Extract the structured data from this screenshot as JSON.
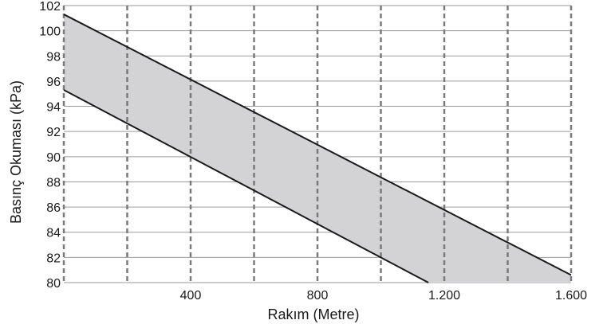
{
  "chart_data": {
    "type": "area",
    "title": "",
    "xlabel": "Rakım (Metre)",
    "ylabel": "Basınç Okuması (kPa)",
    "xlim": [
      0,
      1600
    ],
    "ylim": [
      80,
      102
    ],
    "x_ticks": [
      400,
      800,
      1200,
      1600
    ],
    "x_tick_labels": [
      "400",
      "800",
      "1.200",
      "1.600"
    ],
    "x_grid": [
      0,
      200,
      400,
      600,
      800,
      1000,
      1200,
      1400,
      1600
    ],
    "y_ticks": [
      80,
      82,
      84,
      86,
      88,
      90,
      92,
      94,
      96,
      98,
      100,
      102
    ],
    "y_tick_labels": [
      "80",
      "82",
      "84",
      "86",
      "88",
      "90",
      "92",
      "94",
      "96",
      "98",
      "100",
      "102"
    ],
    "grid": true,
    "legend": "none",
    "series": [
      {
        "role": "upper",
        "x": [
          0,
          1600
        ],
        "values": [
          101.3,
          80.6
        ]
      },
      {
        "role": "lower",
        "x": [
          0,
          1150
        ],
        "values": [
          95.3,
          80
        ]
      }
    ],
    "colors": {
      "band_fill": "#d3d3d5",
      "line": "#1a1a1a",
      "vertical_grid": "#7a7a7a",
      "horizontal_grid": "#9a9a9a"
    }
  }
}
